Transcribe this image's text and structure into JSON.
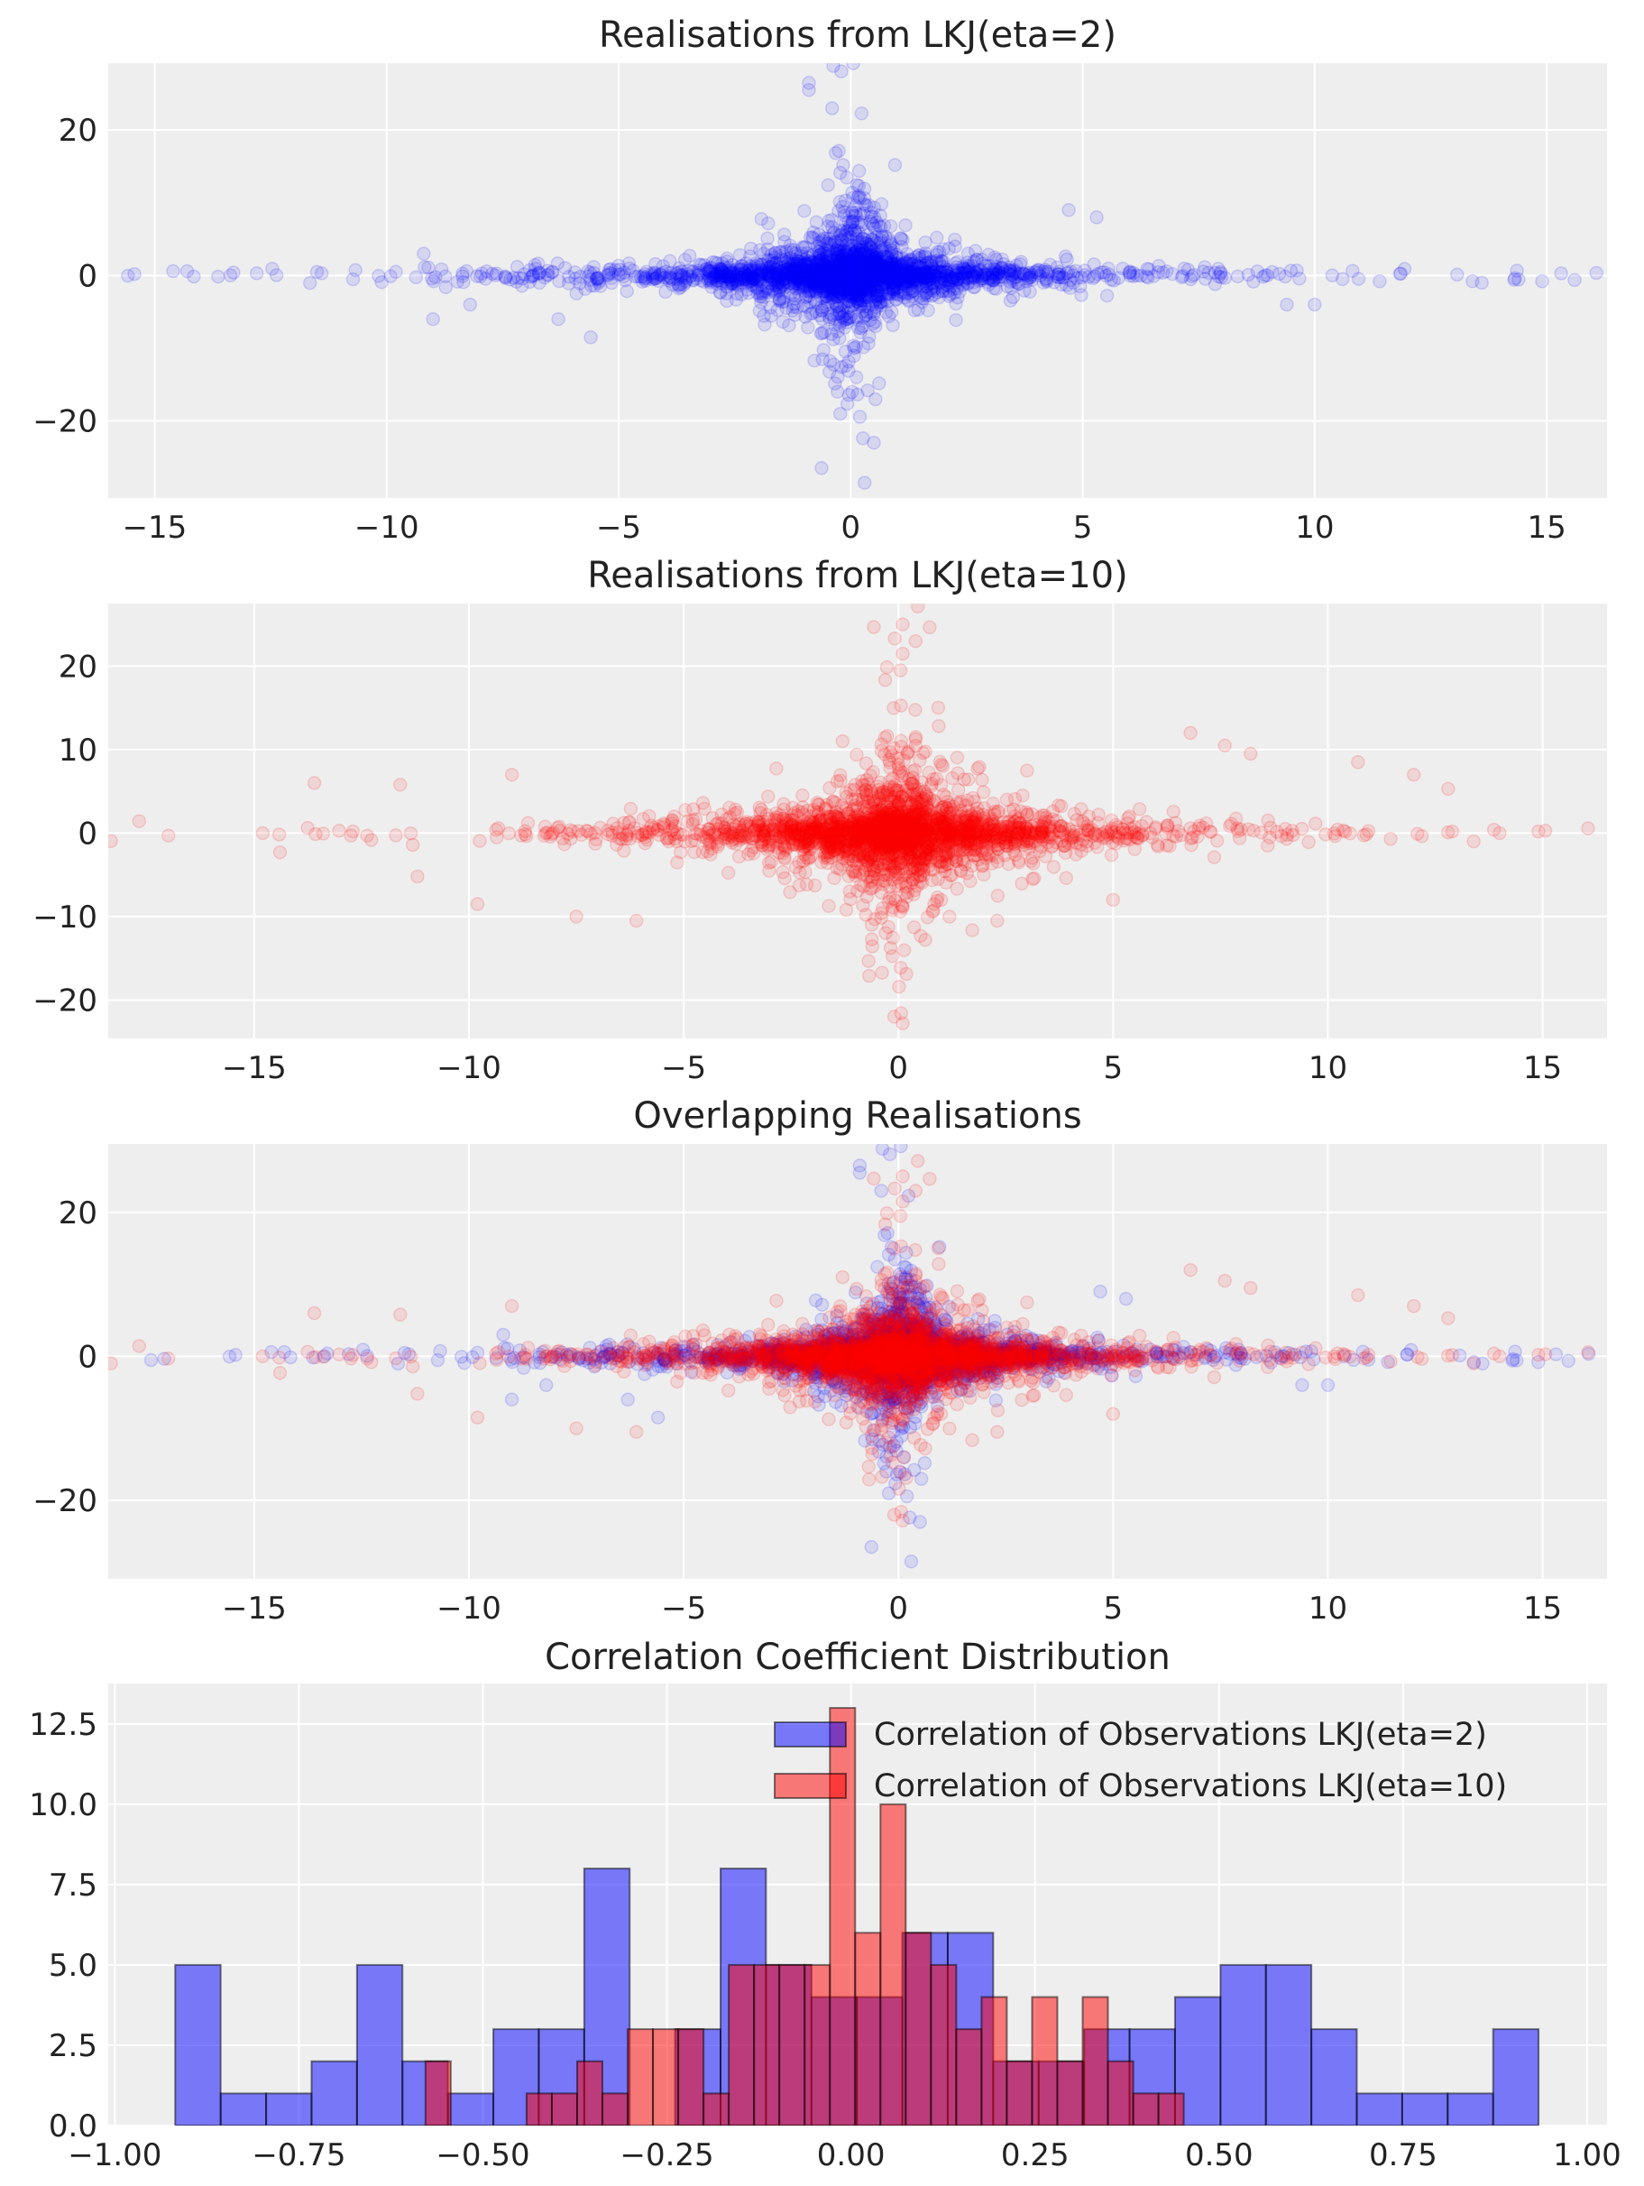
{
  "chart_data": [
    {
      "type": "scatter",
      "title": "Realisations from LKJ(eta=2)",
      "xlim": [
        -16.0,
        16.3
      ],
      "ylim": [
        -30.6,
        29.2
      ],
      "x_ticks": [
        -15,
        -10,
        -5,
        0,
        5,
        10,
        15
      ],
      "x_tick_labels": [
        "−15",
        "−10",
        "−5",
        "0",
        "5",
        "10",
        "15"
      ],
      "y_ticks": [
        -20,
        0,
        20
      ],
      "y_tick_labels": [
        "−20",
        "0",
        "20"
      ],
      "grid": true,
      "series": [
        {
          "color": "#0000ff",
          "alpha": 0.1,
          "points": [
            [
              -14.6,
              0.6
            ],
            [
              -14.3,
              0.6
            ],
            [
              -13.3,
              0.4
            ],
            [
              -12.8,
              0.3
            ],
            [
              -11.4,
              0.3
            ],
            [
              -9.8,
              0.5
            ],
            [
              -9.2,
              3.0
            ],
            [
              -9.0,
              -6.0
            ],
            [
              -8.2,
              -4.0
            ],
            [
              -6.3,
              -6.0
            ],
            [
              -5.6,
              -8.5
            ],
            [
              -0.9,
              26.5
            ],
            [
              -0.9,
              25.5
            ],
            [
              -0.4,
              23.0
            ],
            [
              0.3,
              -28.5
            ],
            [
              0.5,
              -23.0
            ],
            [
              4.7,
              9.0
            ],
            [
              5.3,
              8.0
            ],
            [
              9.4,
              -4.0
            ],
            [
              10.0,
              -4.0
            ],
            [
              10.6,
              -0.5
            ],
            [
              11.4,
              -0.8
            ],
            [
              13.4,
              -0.8
            ],
            [
              13.6,
              -1.0
            ],
            [
              14.3,
              -0.6
            ],
            [
              14.9,
              -0.8
            ]
          ]
        }
      ]
    },
    {
      "type": "scatter",
      "title": "Realisations from LKJ(eta=10)",
      "xlim": [
        -18.4,
        16.5
      ],
      "ylim": [
        -24.6,
        27.5
      ],
      "x_ticks": [
        -15,
        -10,
        -5,
        0,
        5,
        10,
        15
      ],
      "x_tick_labels": [
        "−15",
        "−10",
        "−5",
        "0",
        "5",
        "10",
        "15"
      ],
      "y_ticks": [
        -20,
        -10,
        0,
        10,
        20
      ],
      "y_tick_labels": [
        "−20",
        "−10",
        "0",
        "10",
        "20"
      ],
      "grid": true,
      "series": [
        {
          "color": "#ff0000",
          "alpha": 0.1,
          "points": [
            [
              -17.0,
              -0.3
            ],
            [
              -14.8,
              0.0
            ],
            [
              -14.4,
              -2.3
            ],
            [
              -13.6,
              6.0
            ],
            [
              -12.7,
              0.2
            ],
            [
              -11.6,
              5.8
            ],
            [
              -11.2,
              -5.2
            ],
            [
              -9.8,
              -8.5
            ],
            [
              -9.0,
              7.0
            ],
            [
              -7.5,
              -10.0
            ],
            [
              -6.1,
              -10.5
            ],
            [
              -1.3,
              11.0
            ],
            [
              0.1,
              25.0
            ],
            [
              0.4,
              23.0
            ],
            [
              0.1,
              21.5
            ],
            [
              -0.1,
              -22.0
            ],
            [
              0.1,
              -22.8
            ],
            [
              2.3,
              -10.5
            ],
            [
              5.0,
              -8.0
            ],
            [
              6.8,
              12.0
            ],
            [
              7.6,
              10.5
            ],
            [
              8.2,
              9.5
            ],
            [
              10.7,
              8.5
            ],
            [
              12.0,
              7.0
            ],
            [
              12.8,
              5.3
            ],
            [
              14.0,
              0.0
            ],
            [
              14.9,
              0.2
            ]
          ]
        }
      ]
    },
    {
      "type": "scatter",
      "title": "Overlapping Realisations",
      "xlim": [
        -18.4,
        16.5
      ],
      "ylim": [
        -30.9,
        29.5
      ],
      "x_ticks": [
        -15,
        -10,
        -5,
        0,
        5,
        10,
        15
      ],
      "x_tick_labels": [
        "−15",
        "−10",
        "−5",
        "0",
        "5",
        "10",
        "15"
      ],
      "y_ticks": [
        -20,
        0,
        20
      ],
      "y_tick_labels": [
        "−20",
        "0",
        "20"
      ],
      "grid": true,
      "series": [
        {
          "color": "#0000ff",
          "alpha": 0.1,
          "ref": 0
        },
        {
          "color": "#ff0000",
          "alpha": 0.1,
          "ref": 1
        }
      ]
    },
    {
      "type": "histogram",
      "title": "Correlation Coefficient Distribution",
      "xlim": [
        -1.009,
        1.027
      ],
      "ylim": [
        0,
        13.76
      ],
      "x_ticks": [
        -1.0,
        -0.75,
        -0.5,
        -0.25,
        0.0,
        0.25,
        0.5,
        0.75,
        1.0
      ],
      "x_tick_labels": [
        "−1.00",
        "−0.75",
        "−0.50",
        "−0.25",
        "0.00",
        "0.25",
        "0.50",
        "0.75",
        "1.00"
      ],
      "y_ticks": [
        0,
        2.5,
        5,
        7.5,
        10,
        12.5
      ],
      "y_tick_labels": [
        "0.0",
        "2.5",
        "5.0",
        "7.5",
        "10.0",
        "12.5"
      ],
      "grid": true,
      "legend_position": "top-right",
      "series": [
        {
          "name": "Correlation of Observations LKJ(eta=2)",
          "color": "#0000ff",
          "alpha": 0.5,
          "bin_range": [
            -0.918,
            0.934
          ],
          "counts": [
            5,
            1,
            1,
            2,
            5,
            2,
            1,
            3,
            3,
            8,
            0,
            3,
            8,
            5,
            4,
            4,
            6,
            6,
            2,
            2,
            3,
            3,
            4,
            5,
            5,
            3,
            1,
            1,
            1,
            3
          ]
        },
        {
          "name": "Correlation of Observations LKJ(eta=10)",
          "color": "#ff0000",
          "alpha": 0.5,
          "bin_range": [
            -0.578,
            0.452
          ],
          "counts": [
            2,
            0,
            0,
            0,
            1,
            1,
            2,
            1,
            3,
            3,
            3,
            1,
            5,
            5,
            5,
            5,
            13,
            6,
            10,
            6,
            5,
            3,
            4,
            2,
            4,
            2,
            4,
            2,
            1,
            1
          ]
        }
      ]
    }
  ],
  "colors": {
    "axes_background": "#eeeeee",
    "grid": "#ffffff",
    "text": "#222222",
    "edge": "#000000"
  }
}
